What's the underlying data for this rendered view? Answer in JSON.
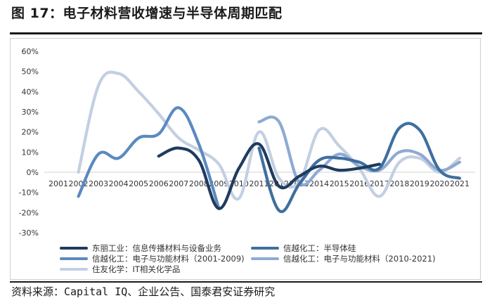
{
  "header": {
    "title": "图 17：电子材料营收增速与半导体周期匹配"
  },
  "footer": {
    "source": "资料来源：Capital IQ、企业公告、国泰君安证券研究"
  },
  "chart_data": {
    "type": "line",
    "title": "",
    "xlabel": "",
    "ylabel": "",
    "x": [
      2001,
      2002,
      2003,
      2004,
      2005,
      2006,
      2007,
      2008,
      2009,
      2010,
      2011,
      2012,
      2013,
      2014,
      2015,
      2016,
      2017,
      2018,
      2019,
      2020,
      2021
    ],
    "x_tick_labels": [
      "2001",
      "2002",
      "2003",
      "2004",
      "2005",
      "2006",
      "2007",
      "2008",
      "2009",
      "2010",
      "2011",
      "2012",
      "2013",
      "2014",
      "2015",
      "2016",
      "2017",
      "2018",
      "2019",
      "2020",
      "2021"
    ],
    "ylim": [
      -0.3,
      0.6
    ],
    "y_ticks": [
      -0.3,
      -0.2,
      -0.1,
      0,
      0.1,
      0.2,
      0.3,
      0.4,
      0.5,
      0.6
    ],
    "y_tick_labels": [
      "-30%",
      "-20%",
      "-10%",
      "0%",
      "10%",
      "20%",
      "30%",
      "40%",
      "50%",
      "60%"
    ],
    "grid": false,
    "smooth": true,
    "legend_position": "bottom",
    "series": [
      {
        "name": "东丽工业：信息传播材料与设备业务",
        "color": "#1f3b5e",
        "points": [
          [
            2006,
            0.08
          ],
          [
            2007,
            0.12
          ],
          [
            2008,
            0.06
          ],
          [
            2009,
            -0.18
          ],
          [
            2010,
            0.02
          ],
          [
            2011,
            0.14
          ],
          [
            2012,
            -0.07
          ],
          [
            2013,
            -0.02
          ],
          [
            2014,
            0.03
          ],
          [
            2015,
            0.01
          ],
          [
            2016,
            0.02
          ],
          [
            2017,
            0.04
          ]
        ]
      },
      {
        "name": "信越化工：半导体硅",
        "color": "#3f6f9f",
        "points": [
          [
            2011,
            0.12
          ],
          [
            2012,
            -0.19
          ],
          [
            2013,
            -0.06
          ],
          [
            2014,
            0.06
          ],
          [
            2015,
            0.07
          ],
          [
            2016,
            0.05
          ],
          [
            2017,
            0.02
          ],
          [
            2018,
            0.22
          ],
          [
            2019,
            0.21
          ],
          [
            2020,
            0.01
          ],
          [
            2021,
            -0.03
          ]
        ]
      },
      {
        "name": "信越化工：电子与功能材料（2001-2009)",
        "color": "#5b8ac0",
        "points": [
          [
            2002,
            -0.12
          ],
          [
            2003,
            0.09
          ],
          [
            2004,
            0.07
          ],
          [
            2005,
            0.17
          ],
          [
            2006,
            0.19
          ],
          [
            2007,
            0.32
          ],
          [
            2008,
            0.14
          ],
          [
            2009,
            -0.18
          ]
        ]
      },
      {
        "name": "信越化工：电子与功能材料（2010-2021)",
        "color": "#8eaad3",
        "points": [
          [
            2011,
            0.25
          ],
          [
            2012,
            0.25
          ],
          [
            2013,
            -0.05
          ],
          [
            2014,
            0.01
          ],
          [
            2015,
            0.09
          ],
          [
            2016,
            0.03
          ],
          [
            2017,
            0.01
          ],
          [
            2018,
            0.1
          ],
          [
            2019,
            0.09
          ],
          [
            2020,
            0.01
          ],
          [
            2021,
            0.05
          ]
        ]
      },
      {
        "name": "住友化学：IT相关化学品",
        "color": "#c3cfe2",
        "points": [
          [
            2002,
            0.0
          ],
          [
            2003,
            0.43
          ],
          [
            2004,
            0.49
          ],
          [
            2005,
            0.4
          ],
          [
            2006,
            0.29
          ],
          [
            2007,
            0.17
          ],
          [
            2008,
            0.11
          ],
          [
            2009,
            0.04
          ],
          [
            2010,
            -0.13
          ],
          [
            2011,
            0.2
          ],
          [
            2012,
            -0.03
          ],
          [
            2013,
            -0.05
          ],
          [
            2014,
            0.21
          ],
          [
            2015,
            0.13
          ],
          [
            2016,
            0.02
          ],
          [
            2017,
            -0.12
          ],
          [
            2018,
            0.05
          ],
          [
            2019,
            0.07
          ],
          [
            2020,
            0.0
          ],
          [
            2021,
            0.07
          ]
        ]
      }
    ]
  }
}
